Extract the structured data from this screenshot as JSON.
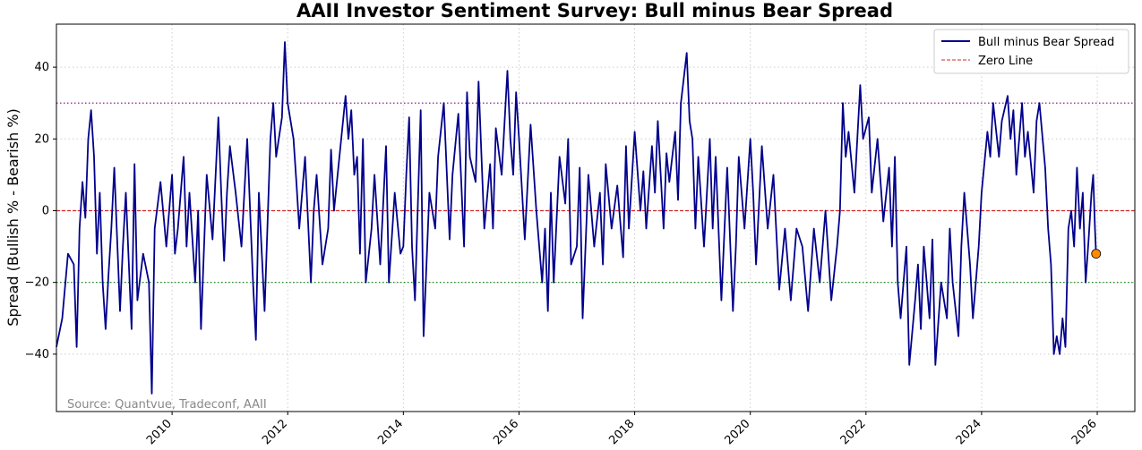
{
  "chart_data": {
    "type": "line",
    "title": "AAII Investor Sentiment Survey: Bull minus Bear Spread",
    "xlabel": "",
    "ylabel": "Spread (Bullish % - Bearish %)",
    "xlim": [
      2008.0,
      2026.65
    ],
    "ylim": [
      -56,
      52
    ],
    "x_ticks": [
      2010,
      2012,
      2014,
      2016,
      2018,
      2020,
      2022,
      2024,
      2026
    ],
    "y_ticks": [
      -40,
      -20,
      0,
      20,
      40
    ],
    "grid": true,
    "legend_position": "top-right",
    "legend": [
      {
        "label": "Bull minus Bear Spread",
        "style": "solid",
        "color": "#00008b"
      },
      {
        "label": "Zero Line",
        "style": "dashed",
        "color": "#d62728"
      }
    ],
    "reference_lines": [
      {
        "y": 30,
        "color": "#800080",
        "style": "dotted"
      },
      {
        "y": 0,
        "color": "#d62728",
        "style": "dashed"
      },
      {
        "y": -20,
        "color": "#008000",
        "style": "dotted"
      }
    ],
    "series": [
      {
        "name": "Bull minus Bear Spread",
        "color": "#00008b",
        "points": [
          [
            2008.0,
            -38
          ],
          [
            2008.1,
            -30
          ],
          [
            2008.2,
            -12
          ],
          [
            2008.3,
            -15
          ],
          [
            2008.35,
            -38
          ],
          [
            2008.4,
            -5
          ],
          [
            2008.45,
            8
          ],
          [
            2008.5,
            -2
          ],
          [
            2008.55,
            20
          ],
          [
            2008.6,
            28
          ],
          [
            2008.65,
            15
          ],
          [
            2008.7,
            -12
          ],
          [
            2008.75,
            5
          ],
          [
            2008.8,
            -20
          ],
          [
            2008.85,
            -33
          ],
          [
            2008.9,
            -18
          ],
          [
            2008.95,
            -5
          ],
          [
            2009.0,
            12
          ],
          [
            2009.1,
            -28
          ],
          [
            2009.15,
            -10
          ],
          [
            2009.2,
            5
          ],
          [
            2009.3,
            -33
          ],
          [
            2009.35,
            13
          ],
          [
            2009.4,
            -25
          ],
          [
            2009.5,
            -12
          ],
          [
            2009.6,
            -20
          ],
          [
            2009.65,
            -51
          ],
          [
            2009.7,
            -5
          ],
          [
            2009.8,
            8
          ],
          [
            2009.9,
            -10
          ],
          [
            2010.0,
            10
          ],
          [
            2010.05,
            -12
          ],
          [
            2010.1,
            -5
          ],
          [
            2010.2,
            15
          ],
          [
            2010.25,
            -10
          ],
          [
            2010.3,
            5
          ],
          [
            2010.4,
            -20
          ],
          [
            2010.45,
            0
          ],
          [
            2010.5,
            -33
          ],
          [
            2010.6,
            10
          ],
          [
            2010.7,
            -8
          ],
          [
            2010.8,
            26
          ],
          [
            2010.85,
            5
          ],
          [
            2010.9,
            -14
          ],
          [
            2010.95,
            5
          ],
          [
            2011.0,
            18
          ],
          [
            2011.1,
            5
          ],
          [
            2011.2,
            -10
          ],
          [
            2011.3,
            20
          ],
          [
            2011.4,
            -20
          ],
          [
            2011.45,
            -36
          ],
          [
            2011.5,
            5
          ],
          [
            2011.6,
            -28
          ],
          [
            2011.7,
            20
          ],
          [
            2011.75,
            30
          ],
          [
            2011.8,
            15
          ],
          [
            2011.9,
            26
          ],
          [
            2011.95,
            47
          ],
          [
            2012.0,
            30
          ],
          [
            2012.1,
            20
          ],
          [
            2012.15,
            8
          ],
          [
            2012.2,
            -5
          ],
          [
            2012.3,
            15
          ],
          [
            2012.4,
            -20
          ],
          [
            2012.45,
            0
          ],
          [
            2012.5,
            10
          ],
          [
            2012.6,
            -15
          ],
          [
            2012.7,
            -5
          ],
          [
            2012.75,
            17
          ],
          [
            2012.8,
            0
          ],
          [
            2013.0,
            32
          ],
          [
            2013.05,
            20
          ],
          [
            2013.1,
            28
          ],
          [
            2013.15,
            10
          ],
          [
            2013.2,
            15
          ],
          [
            2013.25,
            -12
          ],
          [
            2013.3,
            20
          ],
          [
            2013.35,
            -20
          ],
          [
            2013.45,
            -5
          ],
          [
            2013.5,
            10
          ],
          [
            2013.6,
            -15
          ],
          [
            2013.7,
            18
          ],
          [
            2013.75,
            -20
          ],
          [
            2013.85,
            5
          ],
          [
            2013.95,
            -12
          ],
          [
            2014.0,
            -10
          ],
          [
            2014.05,
            10
          ],
          [
            2014.1,
            26
          ],
          [
            2014.15,
            -10
          ],
          [
            2014.2,
            -25
          ],
          [
            2014.3,
            28
          ],
          [
            2014.35,
            -35
          ],
          [
            2014.45,
            5
          ],
          [
            2014.55,
            -5
          ],
          [
            2014.6,
            15
          ],
          [
            2014.7,
            30
          ],
          [
            2014.8,
            -8
          ],
          [
            2014.85,
            10
          ],
          [
            2014.95,
            27
          ],
          [
            2015.05,
            -10
          ],
          [
            2015.1,
            33
          ],
          [
            2015.15,
            15
          ],
          [
            2015.25,
            8
          ],
          [
            2015.3,
            36
          ],
          [
            2015.4,
            -5
          ],
          [
            2015.5,
            13
          ],
          [
            2015.55,
            -5
          ],
          [
            2015.6,
            23
          ],
          [
            2015.7,
            10
          ],
          [
            2015.8,
            39
          ],
          [
            2015.85,
            20
          ],
          [
            2015.9,
            10
          ],
          [
            2015.95,
            33
          ],
          [
            2016.0,
            20
          ],
          [
            2016.1,
            -8
          ],
          [
            2016.2,
            24
          ],
          [
            2016.3,
            0
          ],
          [
            2016.4,
            -20
          ],
          [
            2016.45,
            -5
          ],
          [
            2016.5,
            -28
          ],
          [
            2016.55,
            5
          ],
          [
            2016.6,
            -20
          ],
          [
            2016.7,
            15
          ],
          [
            2016.8,
            2
          ],
          [
            2016.85,
            20
          ],
          [
            2016.9,
            -15
          ],
          [
            2017.0,
            -10
          ],
          [
            2017.05,
            12
          ],
          [
            2017.1,
            -30
          ],
          [
            2017.2,
            10
          ],
          [
            2017.3,
            -10
          ],
          [
            2017.4,
            5
          ],
          [
            2017.45,
            -15
          ],
          [
            2017.5,
            13
          ],
          [
            2017.6,
            -5
          ],
          [
            2017.7,
            7
          ],
          [
            2017.8,
            -13
          ],
          [
            2017.85,
            18
          ],
          [
            2017.9,
            -5
          ],
          [
            2018.0,
            22
          ],
          [
            2018.1,
            0
          ],
          [
            2018.15,
            11
          ],
          [
            2018.2,
            -5
          ],
          [
            2018.3,
            18
          ],
          [
            2018.35,
            5
          ],
          [
            2018.4,
            25
          ],
          [
            2018.5,
            -5
          ],
          [
            2018.55,
            16
          ],
          [
            2018.6,
            8
          ],
          [
            2018.7,
            22
          ],
          [
            2018.75,
            3
          ],
          [
            2018.8,
            30
          ],
          [
            2018.9,
            44
          ],
          [
            2018.95,
            25
          ],
          [
            2019.0,
            20
          ],
          [
            2019.05,
            -5
          ],
          [
            2019.1,
            15
          ],
          [
            2019.2,
            -10
          ],
          [
            2019.3,
            20
          ],
          [
            2019.35,
            -5
          ],
          [
            2019.4,
            15
          ],
          [
            2019.5,
            -25
          ],
          [
            2019.6,
            12
          ],
          [
            2019.7,
            -28
          ],
          [
            2019.75,
            -10
          ],
          [
            2019.8,
            15
          ],
          [
            2019.9,
            -5
          ],
          [
            2020.0,
            20
          ],
          [
            2020.05,
            5
          ],
          [
            2020.1,
            -15
          ],
          [
            2020.2,
            18
          ],
          [
            2020.3,
            -5
          ],
          [
            2020.4,
            10
          ],
          [
            2020.5,
            -22
          ],
          [
            2020.6,
            -5
          ],
          [
            2020.7,
            -25
          ],
          [
            2020.8,
            -5
          ],
          [
            2020.9,
            -10
          ],
          [
            2021.0,
            -28
          ],
          [
            2021.1,
            -5
          ],
          [
            2021.2,
            -20
          ],
          [
            2021.3,
            0
          ],
          [
            2021.4,
            -25
          ],
          [
            2021.5,
            -10
          ],
          [
            2021.55,
            0
          ],
          [
            2021.6,
            30
          ],
          [
            2021.65,
            15
          ],
          [
            2021.7,
            22
          ],
          [
            2021.8,
            5
          ],
          [
            2021.9,
            35
          ],
          [
            2021.95,
            20
          ],
          [
            2022.05,
            26
          ],
          [
            2022.1,
            5
          ],
          [
            2022.2,
            20
          ],
          [
            2022.3,
            -3
          ],
          [
            2022.4,
            12
          ],
          [
            2022.45,
            -10
          ],
          [
            2022.5,
            15
          ],
          [
            2022.55,
            -20
          ],
          [
            2022.6,
            -30
          ],
          [
            2022.7,
            -10
          ],
          [
            2022.75,
            -43
          ],
          [
            2022.85,
            -25
          ],
          [
            2022.9,
            -15
          ],
          [
            2022.95,
            -33
          ],
          [
            2023.0,
            -10
          ],
          [
            2023.1,
            -30
          ],
          [
            2023.15,
            -8
          ],
          [
            2023.2,
            -43
          ],
          [
            2023.3,
            -20
          ],
          [
            2023.4,
            -30
          ],
          [
            2023.45,
            -5
          ],
          [
            2023.5,
            -20
          ],
          [
            2023.6,
            -35
          ],
          [
            2023.65,
            -10
          ],
          [
            2023.7,
            5
          ],
          [
            2023.8,
            -15
          ],
          [
            2023.85,
            -30
          ],
          [
            2023.95,
            -10
          ],
          [
            2024.0,
            5
          ],
          [
            2024.1,
            22
          ],
          [
            2024.15,
            15
          ],
          [
            2024.2,
            30
          ],
          [
            2024.3,
            15
          ],
          [
            2024.35,
            25
          ],
          [
            2024.45,
            32
          ],
          [
            2024.5,
            20
          ],
          [
            2024.55,
            28
          ],
          [
            2024.6,
            10
          ],
          [
            2024.7,
            30
          ],
          [
            2024.75,
            15
          ],
          [
            2024.8,
            22
          ],
          [
            2024.9,
            5
          ],
          [
            2024.95,
            25
          ],
          [
            2025.0,
            30
          ],
          [
            2025.1,
            12
          ],
          [
            2025.15,
            -5
          ],
          [
            2025.2,
            -15
          ],
          [
            2025.25,
            -40
          ],
          [
            2025.3,
            -35
          ],
          [
            2025.35,
            -40
          ],
          [
            2025.4,
            -30
          ],
          [
            2025.45,
            -38
          ],
          [
            2025.5,
            -5
          ],
          [
            2025.55,
            0
          ],
          [
            2025.6,
            -10
          ],
          [
            2025.65,
            12
          ],
          [
            2025.7,
            -5
          ],
          [
            2025.75,
            5
          ],
          [
            2025.8,
            -20
          ],
          [
            2025.85,
            -8
          ],
          [
            2025.9,
            5
          ],
          [
            2025.93,
            10
          ],
          [
            2025.96,
            -5
          ],
          [
            2025.98,
            -12
          ]
        ]
      }
    ],
    "last_point": {
      "x": 2025.98,
      "y": -12,
      "color": "#ff8c00"
    },
    "annotation": "Source: Quantvue, Tradeconf, AAII"
  }
}
